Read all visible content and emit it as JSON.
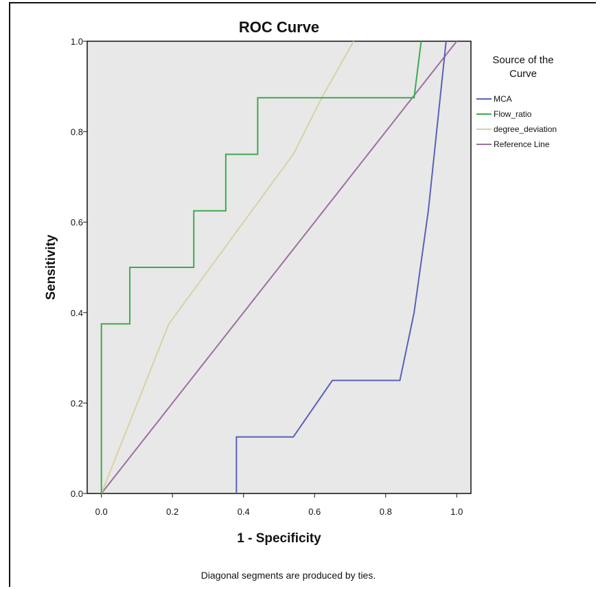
{
  "chart_data": {
    "type": "line",
    "title": "ROC Curve",
    "xlabel": "1 - Specificity",
    "ylabel": "Sensitivity",
    "xlim": [
      -0.04,
      1.04
    ],
    "ylim": [
      0.0,
      1.0
    ],
    "x_ticks": [
      "0.0",
      "0.2",
      "0.4",
      "0.6",
      "0.8",
      "1.0"
    ],
    "y_ticks": [
      "0.0",
      "0.2",
      "0.4",
      "0.6",
      "0.8",
      "1.0"
    ],
    "legend_title": "Source of the Curve",
    "legend_position": "right",
    "footnote": "Diagonal segments are produced by ties.",
    "grid": false,
    "plot_background": "#e8e8e8",
    "series": [
      {
        "name": "MCA",
        "color": "#5a5fb8",
        "x": [
          0.38,
          0.38,
          0.54,
          0.65,
          0.84,
          0.88,
          0.92,
          0.97
        ],
        "y": [
          0.0,
          0.125,
          0.125,
          0.25,
          0.25,
          0.4,
          0.625,
          1.0
        ]
      },
      {
        "name": "Flow_ratio",
        "color": "#3fa94f",
        "x": [
          0.0,
          0.0,
          0.08,
          0.08,
          0.26,
          0.26,
          0.35,
          0.35,
          0.44,
          0.44,
          0.88,
          0.9
        ],
        "y": [
          0.0,
          0.375,
          0.375,
          0.5,
          0.5,
          0.625,
          0.625,
          0.75,
          0.75,
          0.875,
          0.875,
          1.0
        ]
      },
      {
        "name": "degree_deviation",
        "color": "#d9d1a3",
        "x": [
          0.0,
          0.19,
          0.54,
          0.62,
          0.71
        ],
        "y": [
          0.0,
          0.375,
          0.75,
          0.875,
          1.0
        ]
      },
      {
        "name": "Reference Line",
        "color": "#9b6fa0",
        "x": [
          0.0,
          1.0
        ],
        "y": [
          0.0,
          1.0
        ]
      }
    ]
  }
}
